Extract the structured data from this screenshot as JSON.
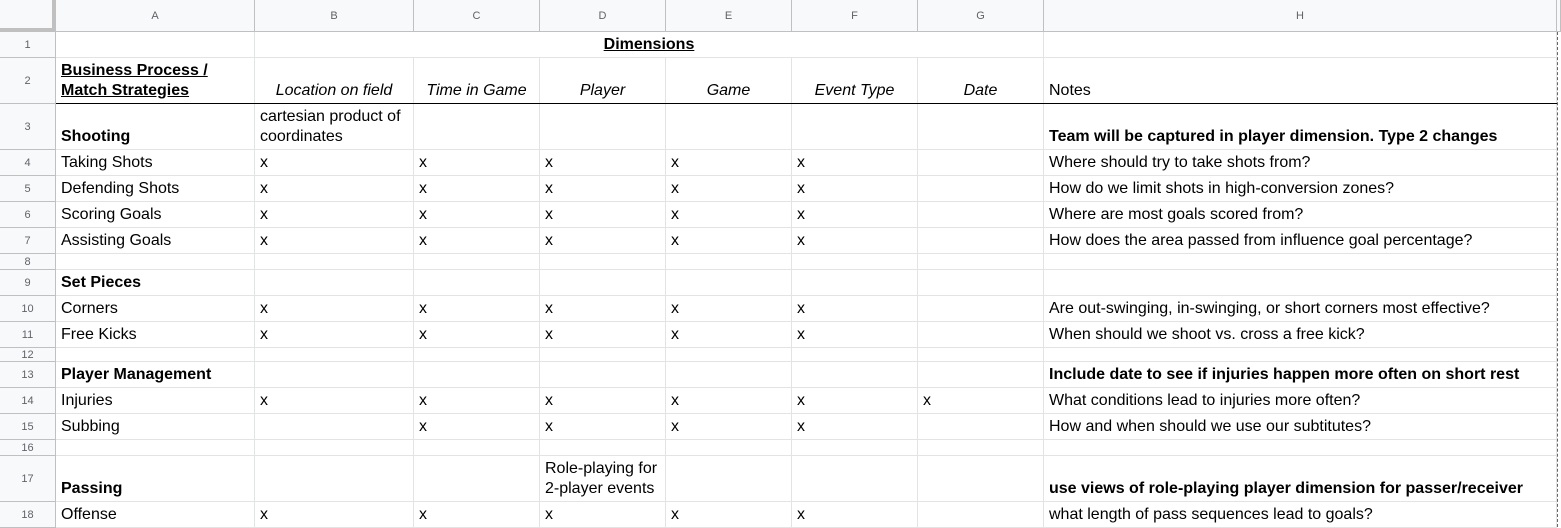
{
  "columns": [
    "A",
    "B",
    "C",
    "D",
    "E",
    "F",
    "G",
    "H"
  ],
  "rows": [
    "1",
    "2",
    "3",
    "4",
    "5",
    "6",
    "7",
    "8",
    "9",
    "10",
    "11",
    "12",
    "13",
    "14",
    "15",
    "16",
    "17",
    "18"
  ],
  "cells": {
    "r1": {
      "title": "Dimensions"
    },
    "r2": {
      "a": "Business Process / Match Strategies",
      "b": "Location on field",
      "c": "Time in Game",
      "d": "Player",
      "e": "Game",
      "f": "Event Type",
      "g": "Date",
      "h": "Notes"
    },
    "r3": {
      "a": "Shooting",
      "b": "cartesian product of coordinates",
      "h": "Team will be captured in player dimension. Type 2 changes"
    },
    "r4": {
      "a": "Taking Shots",
      "b": "x",
      "c": "x",
      "d": "x",
      "e": "x",
      "f": "x",
      "h": "Where should try to take shots from?"
    },
    "r5": {
      "a": "Defending Shots",
      "b": "x",
      "c": "x",
      "d": "x",
      "e": "x",
      "f": "x",
      "h": "How do we limit shots in high-conversion zones?"
    },
    "r6": {
      "a": "Scoring Goals",
      "b": "x",
      "c": "x",
      "d": "x",
      "e": "x",
      "f": "x",
      "h": "Where are most goals scored from?"
    },
    "r7": {
      "a": "Assisting Goals",
      "b": "x",
      "c": "x",
      "d": "x",
      "e": "x",
      "f": "x",
      "h": "How does the area passed from influence goal percentage?"
    },
    "r9": {
      "a": "Set Pieces"
    },
    "r10": {
      "a": "Corners",
      "b": "x",
      "c": "x",
      "d": "x",
      "e": "x",
      "f": "x",
      "h": "Are out-swinging, in-swinging, or short corners most effective?"
    },
    "r11": {
      "a": "Free Kicks",
      "b": "x",
      "c": "x",
      "d": "x",
      "e": "x",
      "f": "x",
      "h": "When should we shoot vs. cross a free kick?"
    },
    "r13": {
      "a": "Player Management",
      "h": "Include date to see if injuries happen more often on short rest"
    },
    "r14": {
      "a": "Injuries",
      "b": "x",
      "c": "x",
      "d": "x",
      "e": "x",
      "f": "x",
      "g": "x",
      "h": "What conditions lead to injuries more often?"
    },
    "r15": {
      "a": "Subbing",
      "c": "x",
      "d": "x",
      "e": "x",
      "f": "x",
      "h": "How and when should we use our subtitutes?"
    },
    "r17": {
      "a": "Passing",
      "d": "Role-playing for 2-player events",
      "h": "use views of role-playing player dimension for passer/receiver"
    },
    "r18": {
      "a": "Offense",
      "b": "x",
      "c": "x",
      "d": "x",
      "e": "x",
      "f": "x",
      "h": "what length of pass sequences lead to goals?"
    }
  }
}
